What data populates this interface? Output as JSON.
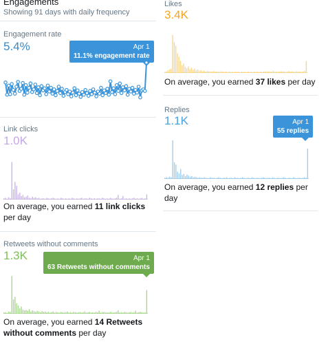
{
  "header": {
    "title": "Engagements",
    "subtitle": "Showing 91 days with daily frequency"
  },
  "engagement_rate": {
    "label": "Engagement rate",
    "value": "5.4%",
    "tooltip_date": "Apr 1",
    "tooltip_text": "11.1% engagement rate",
    "color": "#1da1f2"
  },
  "link_clicks": {
    "label": "Link clicks",
    "value": "1.0K",
    "text_pre": "On average, you earned ",
    "text_bold": "11 link clicks",
    "text_post": " per day",
    "color": "#c5a8e8"
  },
  "retweets": {
    "label": "Retweets without comments",
    "value": "1.3K",
    "tooltip_date": "Apr 1",
    "tooltip_text": "63 Retweets without comments",
    "text_pre": "On average, you earned ",
    "text_bold": "14 Retweets without comments",
    "text_post": " per day",
    "color": "#7dbf5a"
  },
  "likes": {
    "label": "Likes",
    "value": "3.4K",
    "text_pre": "On average, you earned ",
    "text_bold": "37 likes",
    "text_post": " per day",
    "color": "#f5a623"
  },
  "replies": {
    "label": "Replies",
    "value": "1.1K",
    "tooltip_date": "Apr 1",
    "tooltip_text": "55 replies",
    "text_pre": "On average, you earned ",
    "text_bold": "12 replies",
    "text_post": " per day",
    "color": "#4aa3df"
  },
  "chart_data": [
    {
      "type": "line",
      "name": "engagement_rate",
      "ylim": [
        0,
        12
      ],
      "values": [
        7.4,
        5.1,
        6.8,
        5.2,
        7.1,
        6.0,
        5.3,
        6.6,
        7.5,
        5.8,
        6.2,
        7.3,
        5.1,
        6.9,
        5.5,
        6.4,
        7.2,
        5.6,
        6.1,
        7.0,
        5.4,
        6.5,
        5.0,
        6.7,
        5.9,
        6.3,
        5.2,
        6.8,
        5.7,
        6.4,
        5.3,
        6.1,
        5.0,
        5.8,
        6.6,
        5.4,
        6.2,
        4.9,
        5.6,
        6.0,
        5.2,
        5.7,
        4.8,
        5.5,
        6.3,
        5.0,
        5.9,
        5.3,
        4.7,
        5.6,
        5.1,
        6.0,
        5.4,
        4.9,
        5.8,
        5.2,
        6.1,
        5.5,
        4.8,
        5.7,
        5.3,
        6.4,
        5.0,
        5.9,
        5.4,
        6.2,
        5.1,
        7.6,
        5.6,
        6.3,
        5.2,
        6.9,
        5.8,
        7.2,
        5.4,
        6.5,
        5.9,
        6.7,
        5.1,
        6.2,
        5.7,
        6.4,
        5.3,
        6.0,
        5.5,
        6.6,
        4.6,
        5.9,
        6.1,
        5.8,
        11.1
      ]
    },
    {
      "type": "bar",
      "name": "link_clicks",
      "ylim": [
        0,
        75
      ],
      "values": [
        2,
        3,
        1,
        4,
        2,
        66,
        18,
        31,
        24,
        9,
        12,
        6,
        8,
        4,
        5,
        7,
        3,
        2,
        5,
        3,
        4,
        2,
        3,
        1,
        2,
        2,
        1,
        3,
        2,
        1,
        2,
        3,
        2,
        1,
        2,
        1,
        3,
        2,
        1,
        2,
        1,
        2,
        1,
        3,
        2,
        1,
        2,
        1,
        2,
        3,
        1,
        2,
        2,
        1,
        3,
        2,
        1,
        2,
        1,
        2,
        2,
        1,
        3,
        2,
        1,
        2,
        1,
        3,
        2,
        1,
        2,
        3,
        8,
        1,
        2,
        6,
        1,
        2,
        1,
        2,
        1,
        2,
        3,
        1,
        2,
        1,
        2,
        3,
        1,
        2,
        9
      ]
    },
    {
      "type": "bar",
      "name": "retweets",
      "ylim": [
        0,
        110
      ],
      "values": [
        3,
        4,
        2,
        6,
        5,
        100,
        38,
        45,
        28,
        22,
        14,
        19,
        11,
        9,
        10,
        8,
        12,
        6,
        9,
        7,
        5,
        8,
        6,
        4,
        7,
        5,
        6,
        4,
        5,
        3,
        4,
        6,
        3,
        5,
        4,
        3,
        5,
        4,
        3,
        4,
        6,
        3,
        4,
        3,
        5,
        4,
        3,
        4,
        5,
        3,
        4,
        6,
        3,
        4,
        5,
        3,
        4,
        3,
        5,
        4,
        8,
        3,
        4,
        5,
        3,
        4,
        3,
        5,
        4,
        3,
        4,
        5,
        9,
        3,
        4,
        3,
        5,
        4,
        3,
        4,
        5,
        3,
        4,
        8,
        3,
        4,
        5,
        4,
        3,
        4,
        63
      ]
    },
    {
      "type": "bar",
      "name": "likes",
      "ylim": [
        0,
        250
      ],
      "values": [
        5,
        10,
        15,
        20,
        25,
        223,
        180,
        160,
        115,
        95,
        70,
        45,
        55,
        35,
        28,
        38,
        22,
        30,
        18,
        25,
        15,
        20,
        12,
        16,
        10,
        14,
        8,
        12,
        10,
        9,
        8,
        11,
        7,
        9,
        8,
        6,
        10,
        7,
        6,
        9,
        5,
        8,
        6,
        7,
        5,
        8,
        6,
        7,
        5,
        9,
        6,
        7,
        5,
        8,
        6,
        7,
        5,
        8,
        6,
        7,
        5,
        9,
        6,
        8,
        10,
        7,
        9,
        6,
        8,
        12,
        7,
        9,
        6,
        8,
        10,
        7,
        9,
        6,
        8,
        11,
        7,
        9,
        6,
        8,
        10,
        7,
        9,
        6,
        8,
        12,
        70
      ]
    },
    {
      "type": "bar",
      "name": "replies",
      "ylim": [
        0,
        75
      ],
      "values": [
        2,
        3,
        2,
        4,
        3,
        70,
        30,
        26,
        13,
        10,
        18,
        7,
        9,
        5,
        8,
        6,
        4,
        5,
        3,
        4,
        3,
        2,
        3,
        2,
        2,
        3,
        2,
        1,
        2,
        3,
        2,
        2,
        1,
        2,
        3,
        2,
        1,
        2,
        2,
        3,
        1,
        2,
        2,
        1,
        3,
        2,
        2,
        1,
        2,
        3,
        2,
        1,
        2,
        2,
        1,
        3,
        2,
        1,
        2,
        2,
        1,
        2,
        3,
        2,
        1,
        2,
        2,
        1,
        3,
        2,
        1,
        2,
        2,
        1,
        2,
        3,
        2,
        1,
        2,
        2,
        1,
        3,
        2,
        1,
        2,
        2,
        1,
        2,
        3,
        2,
        55
      ]
    }
  ]
}
